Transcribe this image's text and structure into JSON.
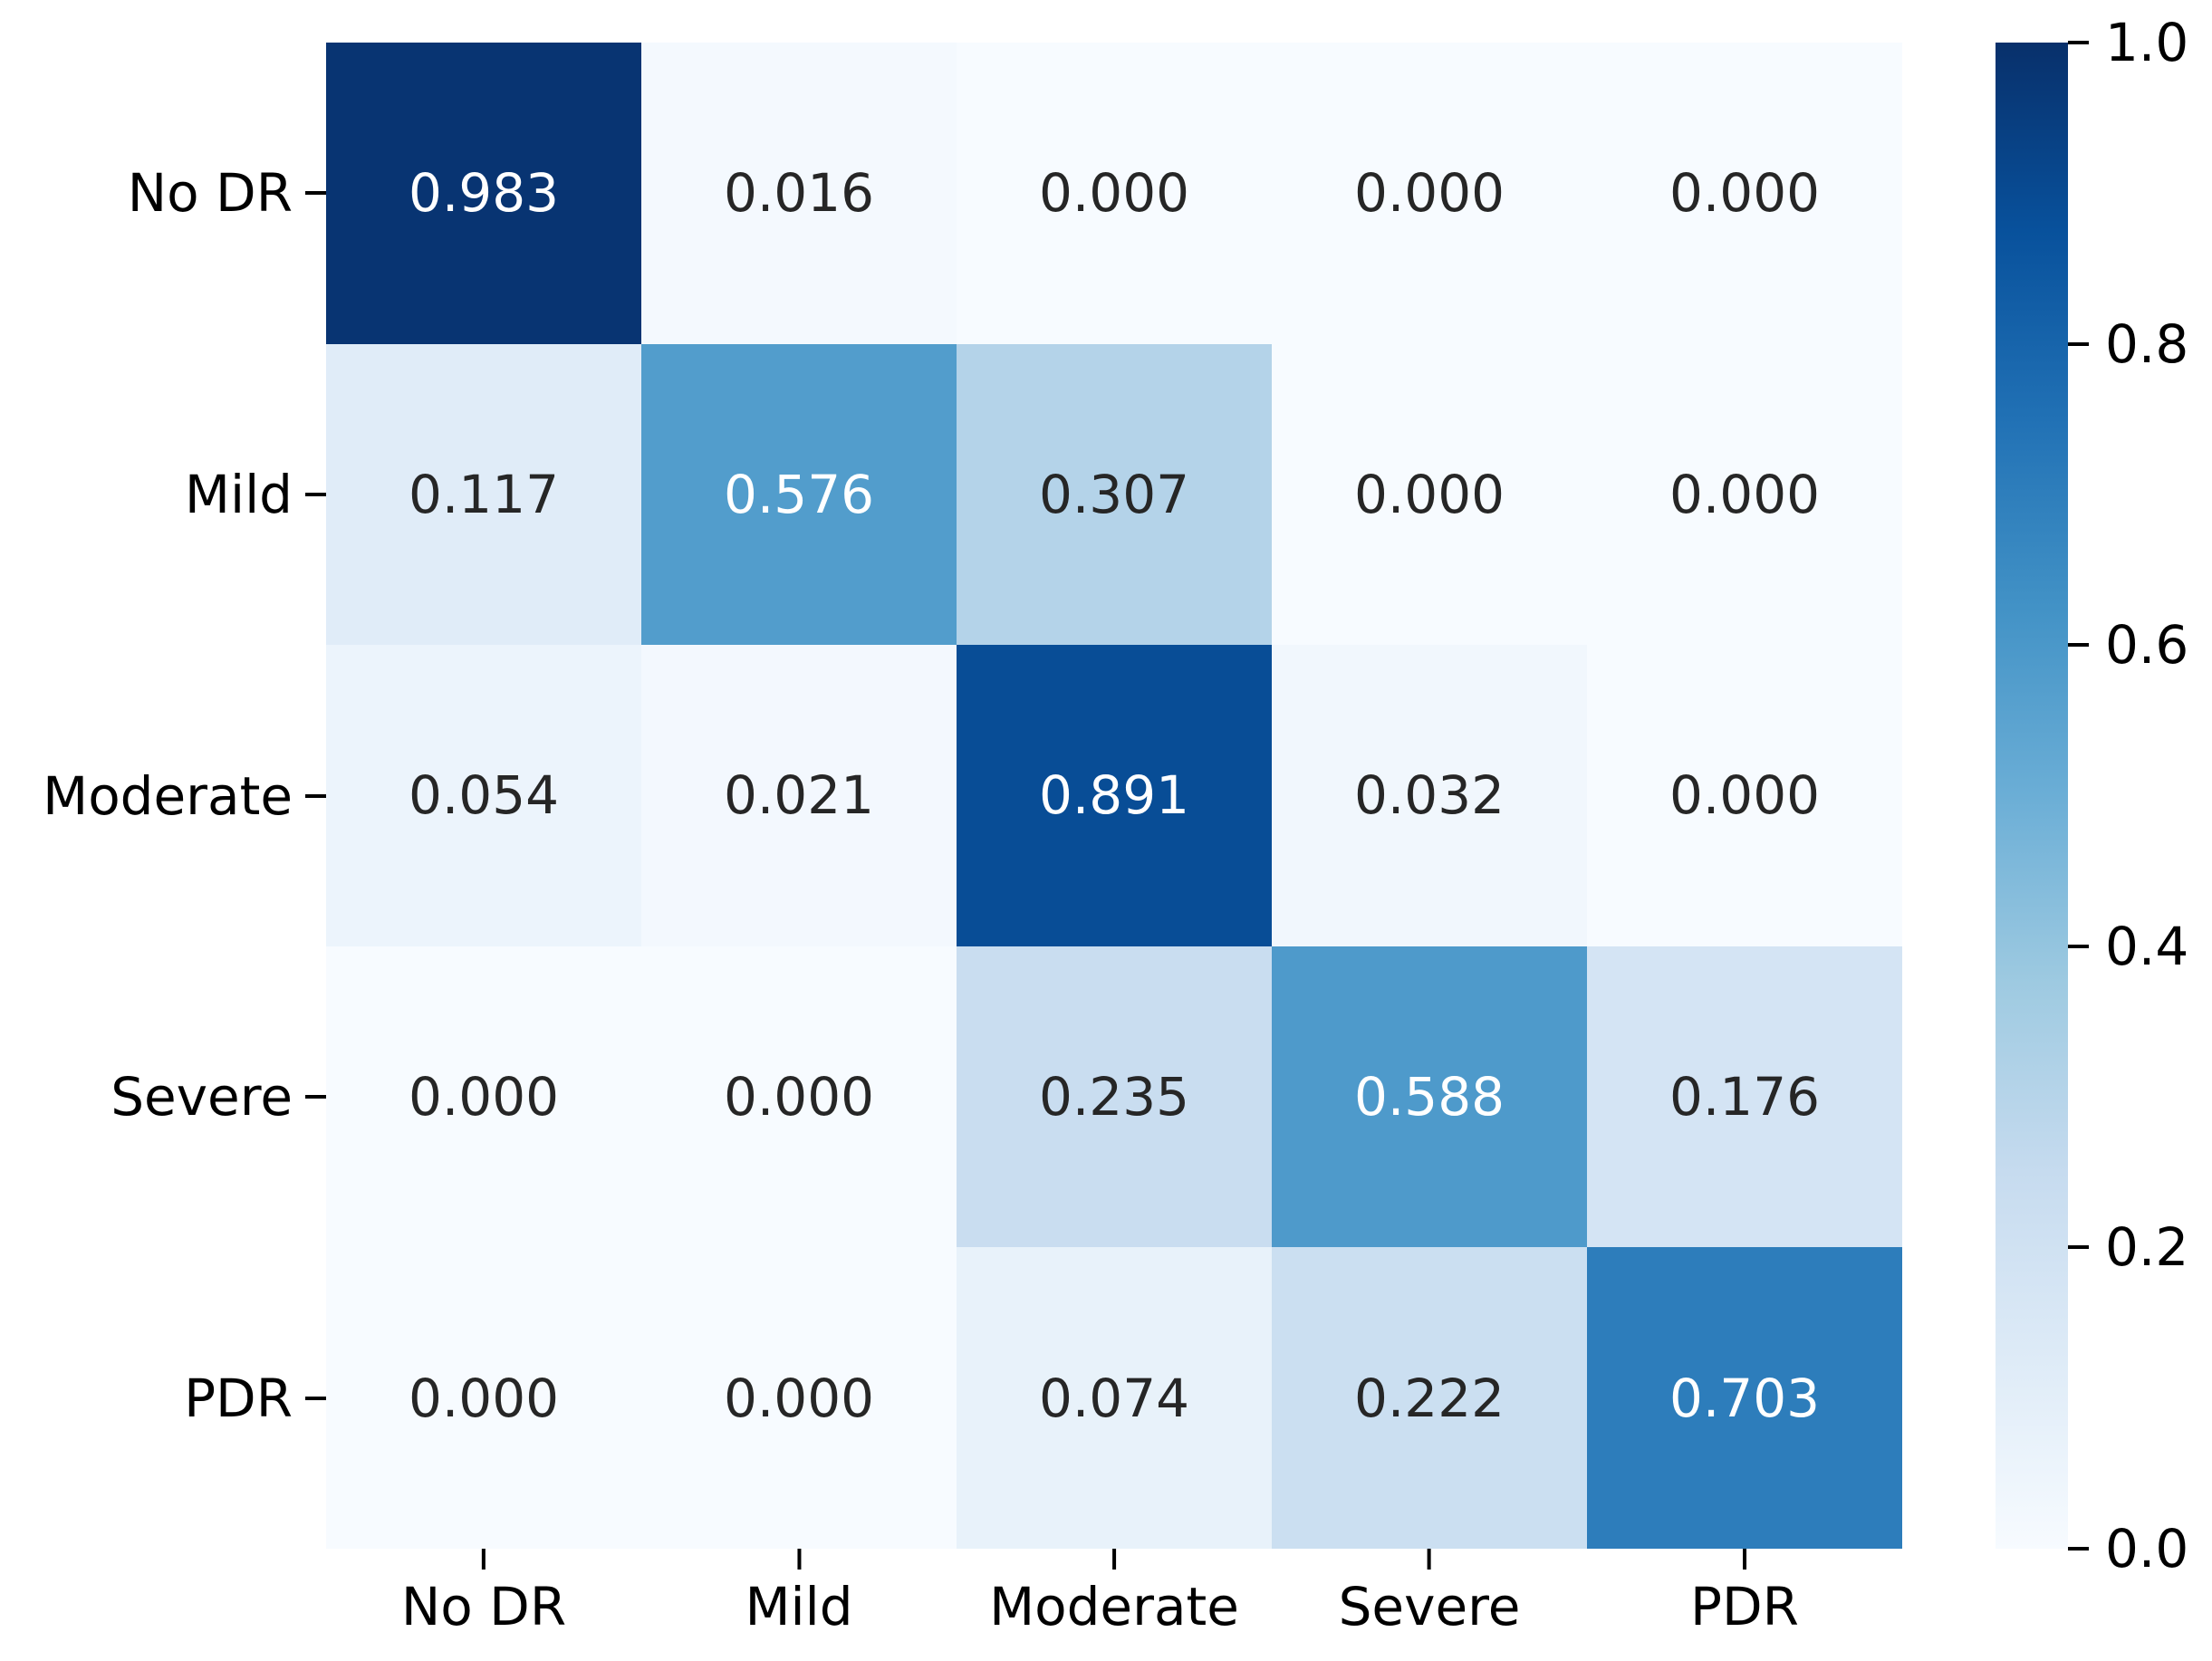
{
  "chart_data": {
    "type": "heatmap",
    "title": "",
    "categories_x": [
      "No DR",
      "Mild",
      "Moderate",
      "Severe",
      "PDR"
    ],
    "categories_y": [
      "No DR",
      "Mild",
      "Moderate",
      "Severe",
      "PDR"
    ],
    "matrix": [
      [
        0.983,
        0.016,
        0.0,
        0.0,
        0.0
      ],
      [
        0.117,
        0.576,
        0.307,
        0.0,
        0.0
      ],
      [
        0.054,
        0.021,
        0.891,
        0.032,
        0.0
      ],
      [
        0.0,
        0.0,
        0.235,
        0.588,
        0.176
      ],
      [
        0.0,
        0.0,
        0.074,
        0.222,
        0.703
      ]
    ],
    "value_decimals": 3,
    "vmin": 0.0,
    "vmax": 1.0,
    "grid": false,
    "legend_position": "colorbar-right",
    "colormap": {
      "name": "Blues",
      "anchors": [
        {
          "pos": 0.0,
          "color": "#f7fbff"
        },
        {
          "pos": 0.125,
          "color": "#deebf7"
        },
        {
          "pos": 0.25,
          "color": "#c6dbef"
        },
        {
          "pos": 0.375,
          "color": "#9ecae1"
        },
        {
          "pos": 0.5,
          "color": "#6baed6"
        },
        {
          "pos": 0.625,
          "color": "#4292c6"
        },
        {
          "pos": 0.75,
          "color": "#2171b5"
        },
        {
          "pos": 0.875,
          "color": "#08519c"
        },
        {
          "pos": 1.0,
          "color": "#08306b"
        }
      ]
    },
    "colorbar": {
      "tick_labels_top_to_bottom": [
        "1.0",
        "0.8",
        "0.6",
        "0.4",
        "0.2",
        "0.0"
      ]
    },
    "annotation_colors": {
      "on_light": "#262626",
      "on_dark": "#ffffff"
    },
    "axis_tick_color": "#000000",
    "background_color": "#ffffff"
  }
}
